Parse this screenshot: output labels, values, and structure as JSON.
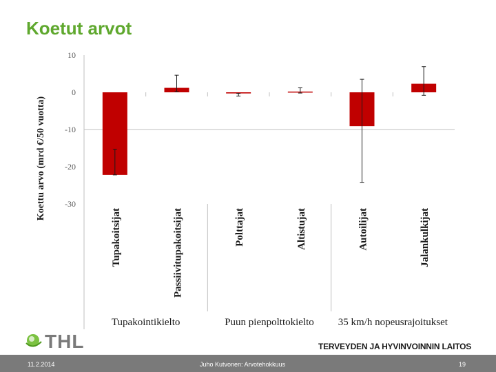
{
  "slide": {
    "title": "Koetut arvot",
    "logo_text": "THL",
    "organization": "TERVEYDEN JA HYVINVOINNIN LAITOS"
  },
  "footer": {
    "date": "11.2.2014",
    "author": "Juho Kutvonen: Arvotehokkuus",
    "page": "19"
  },
  "colors": {
    "bar": "#c00000",
    "title": "#5fa82e",
    "footer_bg": "#7a7a7a"
  },
  "chart_data": {
    "type": "bar",
    "ylabel": "Koettu arvo (mrd €/50 vuotta)",
    "ylim": [
      -30,
      10
    ],
    "yticks": [
      10,
      0,
      -10,
      -20,
      -30
    ],
    "grid": false,
    "categories": [
      "Tupakoitsijat",
      "Passiivitupakoitsijat",
      "Polttajat",
      "Altistujat",
      "Autoilijat",
      "Jalankulkijat"
    ],
    "groups": [
      "Tupakointikielto",
      "Puun pienpolttokielto",
      "35 km/h nopeusrajoitukset"
    ],
    "values": [
      -22.2,
      1.2,
      -0.3,
      0.2,
      -9.1,
      2.3
    ],
    "error_low": [
      -15.3,
      0.2,
      -1.0,
      -0.2,
      -24.2,
      -0.8
    ],
    "error_high": [
      -22.2,
      4.6,
      -0.3,
      1.2,
      3.5,
      6.9
    ]
  }
}
